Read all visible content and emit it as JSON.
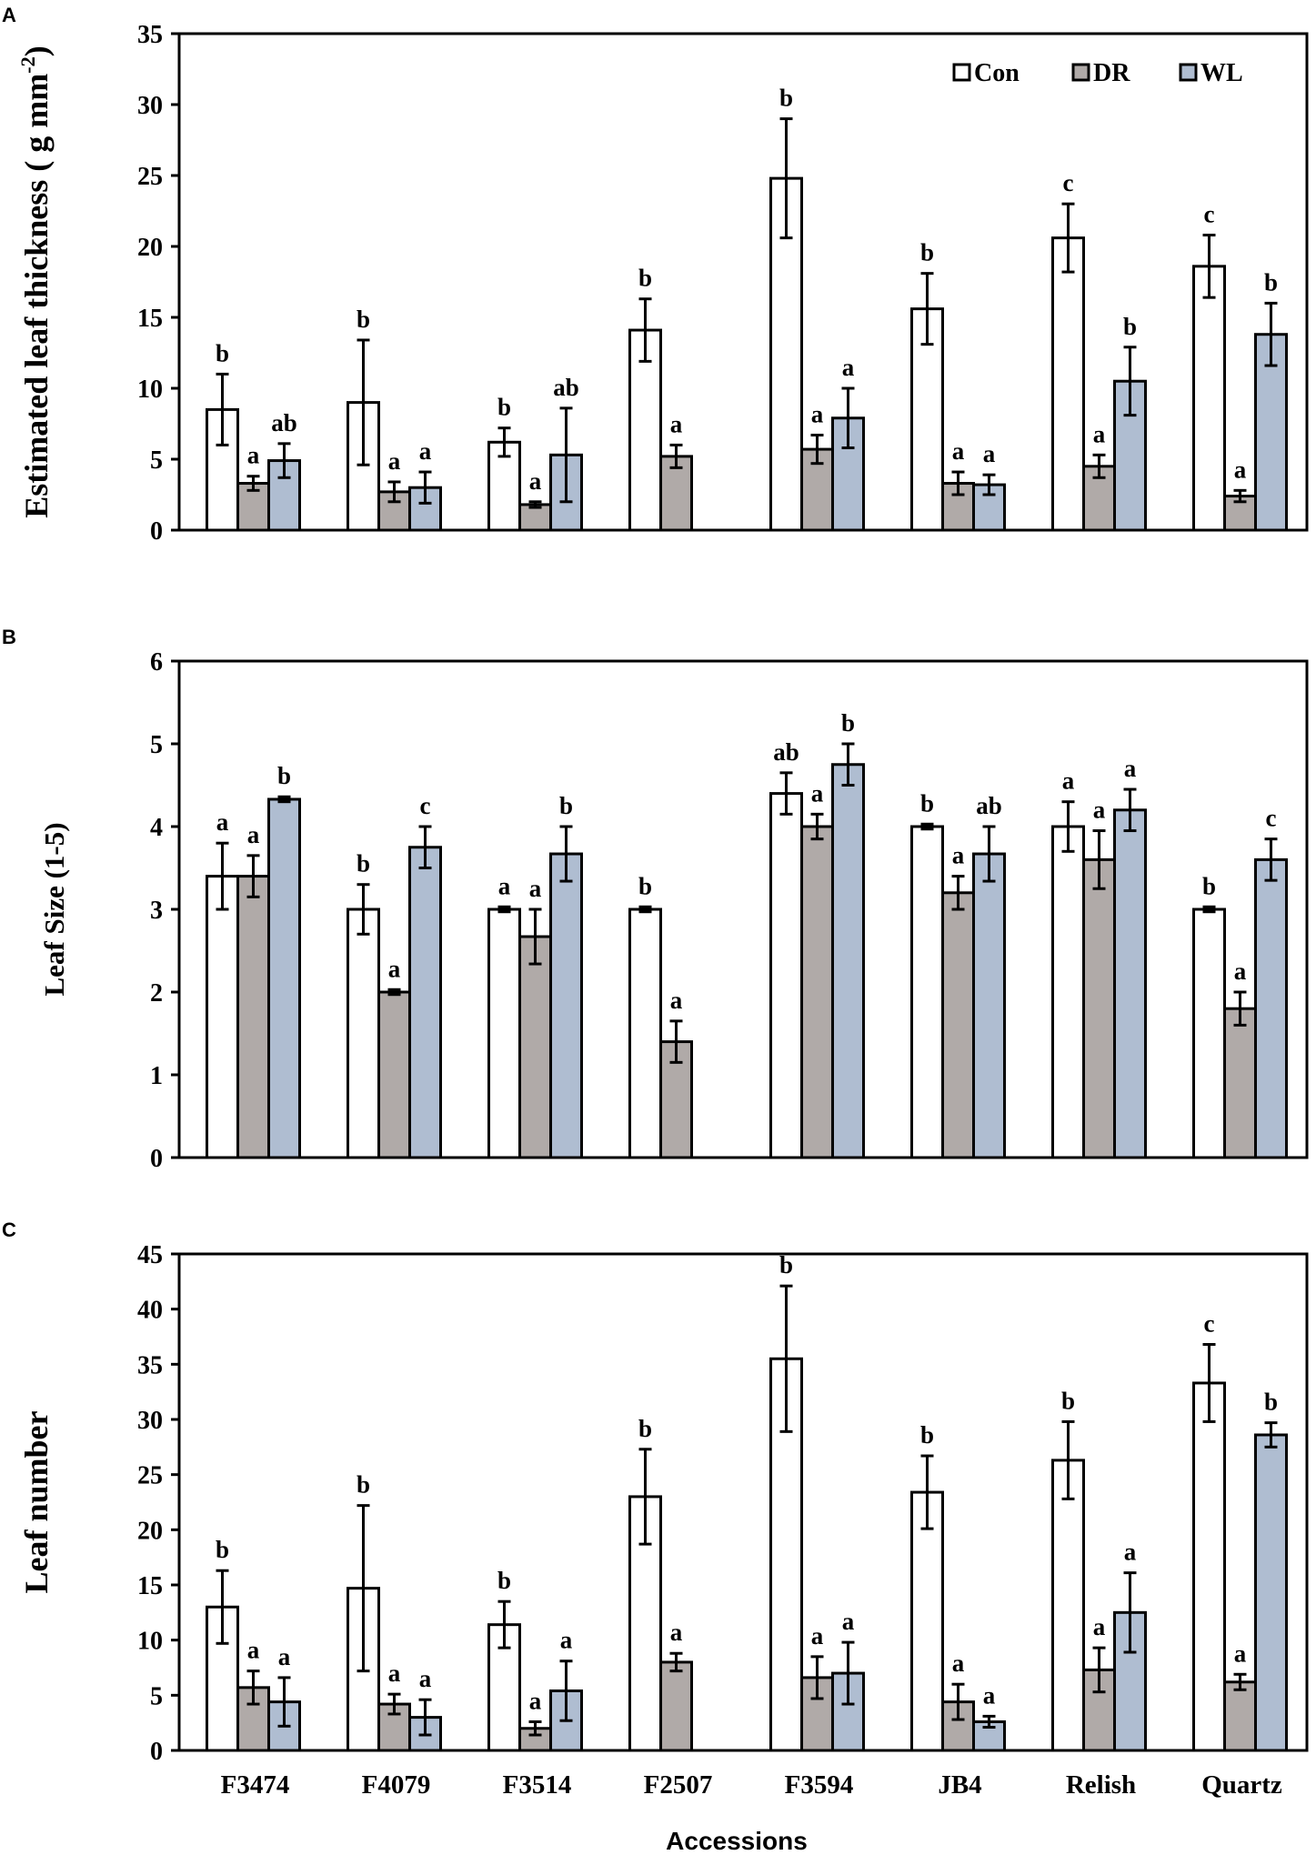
{
  "figure": {
    "xlabel": "Accessions",
    "categories": [
      "F3474",
      "F4079",
      "F3514",
      "F2507",
      "F3594",
      "JB4",
      "Relish",
      "Quartz"
    ],
    "series_names": [
      "Con",
      "DR",
      "WL"
    ],
    "colors": {
      "Con": "#ffffff",
      "DR": "#b0aaa8",
      "WL": "#afbdd1",
      "stroke": "#000000"
    }
  },
  "chart_data": [
    {
      "panel": "A",
      "type": "bar",
      "title": "",
      "ylabel_main": "Estimated leaf thickness ( g mm",
      "ylabel_sup": "-2",
      "ylabel_end": ")",
      "ylim": [
        0,
        35
      ],
      "yticks": [
        0,
        5,
        10,
        15,
        20,
        25,
        30,
        35
      ],
      "legend": "top-right",
      "categories": [
        "F3474",
        "F4079",
        "F3514",
        "F2507",
        "F3594",
        "JB4",
        "Relish",
        "Quartz"
      ],
      "series": [
        {
          "name": "Con",
          "values": [
            8.5,
            9.0,
            6.2,
            14.1,
            24.8,
            15.6,
            20.6,
            18.6
          ],
          "errors": [
            2.5,
            4.4,
            1.0,
            2.2,
            4.2,
            2.5,
            2.4,
            2.2
          ],
          "letters": [
            "b",
            "b",
            "b",
            "b",
            "b",
            "b",
            "c",
            "c"
          ]
        },
        {
          "name": "DR",
          "values": [
            3.3,
            2.7,
            1.8,
            5.2,
            5.7,
            3.3,
            4.5,
            2.4
          ],
          "errors": [
            0.5,
            0.7,
            0.2,
            0.8,
            1.0,
            0.8,
            0.8,
            0.4
          ],
          "letters": [
            "a",
            "a",
            "a",
            "a",
            "a",
            "a",
            "a",
            "a"
          ]
        },
        {
          "name": "WL",
          "values": [
            4.9,
            3.0,
            5.3,
            null,
            7.9,
            3.2,
            10.5,
            13.8
          ],
          "errors": [
            1.2,
            1.1,
            3.3,
            null,
            2.1,
            0.7,
            2.4,
            2.2
          ],
          "letters": [
            "ab",
            "a",
            "ab",
            "",
            "a",
            "a",
            "b",
            "b"
          ]
        }
      ]
    },
    {
      "panel": "B",
      "type": "bar",
      "title": "",
      "ylabel_main": "Leaf Size (1-5)",
      "ylabel_sup": "",
      "ylabel_end": "",
      "ylim": [
        0,
        6
      ],
      "yticks": [
        0,
        1,
        2,
        3,
        4,
        5,
        6
      ],
      "legend": "",
      "categories": [
        "F3474",
        "F4079",
        "F3514",
        "F2507",
        "F3594",
        "JB4",
        "Relish",
        "Quartz"
      ],
      "series": [
        {
          "name": "Con",
          "values": [
            3.4,
            3.0,
            3.0,
            3.0,
            4.4,
            4.0,
            4.0,
            3.0
          ],
          "errors": [
            0.4,
            0.3,
            0.03,
            0.03,
            0.25,
            0.03,
            0.3,
            0.03
          ],
          "letters": [
            "a",
            "b",
            "a",
            "b",
            "ab",
            "b",
            "a",
            "b"
          ]
        },
        {
          "name": "DR",
          "values": [
            3.4,
            2.0,
            2.67,
            1.4,
            4.0,
            3.2,
            3.6,
            1.8
          ],
          "errors": [
            0.25,
            0.03,
            0.33,
            0.25,
            0.15,
            0.2,
            0.35,
            0.2
          ],
          "letters": [
            "a",
            "a",
            "a",
            "a",
            "a",
            "a",
            "a",
            "a"
          ]
        },
        {
          "name": "WL",
          "values": [
            4.33,
            3.75,
            3.67,
            null,
            4.75,
            3.67,
            4.2,
            3.6
          ],
          "errors": [
            0.03,
            0.25,
            0.33,
            null,
            0.25,
            0.33,
            0.25,
            0.25
          ],
          "letters": [
            "b",
            "c",
            "b",
            "",
            "b",
            "ab",
            "a",
            "c"
          ]
        }
      ]
    },
    {
      "panel": "C",
      "type": "bar",
      "title": "",
      "ylabel_main": "Leaf number",
      "ylabel_sup": "",
      "ylabel_end": "",
      "ylim": [
        0,
        45
      ],
      "yticks": [
        0,
        5,
        10,
        15,
        20,
        25,
        30,
        35,
        40,
        45
      ],
      "legend": "",
      "categories": [
        "F3474",
        "F4079",
        "F3514",
        "F2507",
        "F3594",
        "JB4",
        "Relish",
        "Quartz"
      ],
      "series": [
        {
          "name": "Con",
          "values": [
            13.0,
            14.7,
            11.4,
            23.0,
            35.5,
            23.4,
            26.3,
            33.3
          ],
          "errors": [
            3.3,
            7.5,
            2.1,
            4.3,
            6.6,
            3.3,
            3.5,
            3.5
          ],
          "letters": [
            "b",
            "b",
            "b",
            "b",
            "b",
            "b",
            "b",
            "c"
          ]
        },
        {
          "name": "DR",
          "values": [
            5.7,
            4.2,
            2.0,
            8.0,
            6.6,
            4.4,
            7.3,
            6.2
          ],
          "errors": [
            1.5,
            0.9,
            0.6,
            0.8,
            1.9,
            1.6,
            2.0,
            0.7
          ],
          "letters": [
            "a",
            "a",
            "a",
            "a",
            "a",
            "a",
            "a",
            "a"
          ]
        },
        {
          "name": "WL",
          "values": [
            4.4,
            3.0,
            5.4,
            null,
            7.0,
            2.6,
            12.5,
            28.6
          ],
          "errors": [
            2.2,
            1.6,
            2.7,
            null,
            2.8,
            0.5,
            3.6,
            1.1
          ],
          "letters": [
            "a",
            "a",
            "a",
            "",
            "a",
            "a",
            "a",
            "b"
          ]
        }
      ]
    }
  ]
}
